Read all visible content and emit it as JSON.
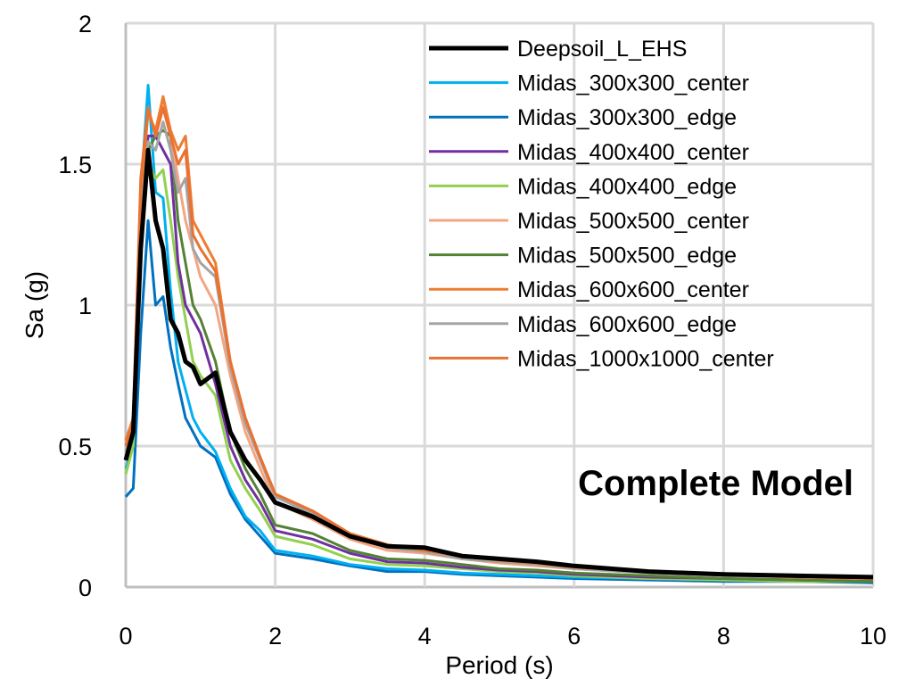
{
  "chart_data": {
    "type": "line",
    "title": "",
    "xlabel": "Period (s)",
    "ylabel": "Sa (g)",
    "xlim": [
      0,
      10
    ],
    "ylim": [
      0,
      2
    ],
    "xticks": [
      "0",
      "2",
      "4",
      "6",
      "8",
      "10"
    ],
    "yticks": [
      "0",
      "0.5",
      "1",
      "1.5",
      "2"
    ],
    "grid": true,
    "legend_position": "top-right",
    "annotation": "Complete Model",
    "x": [
      0,
      0.1,
      0.2,
      0.3,
      0.4,
      0.5,
      0.6,
      0.7,
      0.8,
      0.9,
      1.0,
      1.2,
      1.4,
      1.6,
      1.8,
      2.0,
      2.5,
      3,
      3.5,
      4,
      4.5,
      5,
      5.5,
      6,
      7,
      8,
      9,
      10
    ],
    "series": [
      {
        "name": "Deepsoil_L_EHS",
        "color": "#000000",
        "values": [
          0.45,
          0.55,
          1.2,
          1.55,
          1.3,
          1.2,
          0.95,
          0.9,
          0.8,
          0.78,
          0.72,
          0.76,
          0.55,
          0.45,
          0.38,
          0.3,
          0.25,
          0.18,
          0.145,
          0.14,
          0.11,
          0.1,
          0.09,
          0.075,
          0.055,
          0.045,
          0.04,
          0.035
        ]
      },
      {
        "name": "Midas_300x300_center",
        "color": "#00B0F0",
        "values": [
          0.42,
          0.5,
          1.4,
          1.78,
          1.4,
          1.38,
          1.05,
          0.8,
          0.7,
          0.6,
          0.55,
          0.48,
          0.35,
          0.25,
          0.2,
          0.13,
          0.11,
          0.08,
          0.065,
          0.06,
          0.05,
          0.045,
          0.04,
          0.035,
          0.03,
          0.025,
          0.02,
          0.02
        ]
      },
      {
        "name": "Midas_300x300_edge",
        "color": "#0070C0",
        "values": [
          0.32,
          0.35,
          0.9,
          1.3,
          1.0,
          1.03,
          0.85,
          0.72,
          0.6,
          0.55,
          0.5,
          0.46,
          0.33,
          0.24,
          0.18,
          0.12,
          0.1,
          0.075,
          0.055,
          0.055,
          0.045,
          0.04,
          0.035,
          0.03,
          0.025,
          0.02,
          0.02,
          0.015
        ]
      },
      {
        "name": "Midas_400x400_center",
        "color": "#7030A0",
        "values": [
          0.45,
          0.55,
          1.3,
          1.6,
          1.6,
          1.55,
          1.5,
          1.15,
          1.0,
          0.95,
          0.9,
          0.72,
          0.5,
          0.38,
          0.3,
          0.2,
          0.17,
          0.12,
          0.09,
          0.085,
          0.07,
          0.06,
          0.055,
          0.045,
          0.035,
          0.03,
          0.025,
          0.02
        ]
      },
      {
        "name": "Midas_400x400_edge",
        "color": "#92D050",
        "values": [
          0.4,
          0.5,
          1.25,
          1.5,
          1.45,
          1.48,
          1.3,
          1.1,
          0.95,
          0.8,
          0.75,
          0.68,
          0.45,
          0.35,
          0.27,
          0.18,
          0.15,
          0.1,
          0.08,
          0.075,
          0.065,
          0.055,
          0.05,
          0.04,
          0.03,
          0.025,
          0.02,
          0.02
        ]
      },
      {
        "name": "Midas_500x500_center",
        "color": "#F4A582",
        "values": [
          0.5,
          0.58,
          1.4,
          1.7,
          1.6,
          1.72,
          1.6,
          1.45,
          1.3,
          1.2,
          1.1,
          1.0,
          0.75,
          0.55,
          0.42,
          0.3,
          0.24,
          0.17,
          0.13,
          0.12,
          0.1,
          0.085,
          0.075,
          0.065,
          0.05,
          0.04,
          0.035,
          0.03
        ]
      },
      {
        "name": "Midas_500x500_edge",
        "color": "#548235",
        "values": [
          0.45,
          0.55,
          1.3,
          1.55,
          1.6,
          1.62,
          1.6,
          1.3,
          1.15,
          1.0,
          0.95,
          0.8,
          0.55,
          0.42,
          0.33,
          0.22,
          0.19,
          0.13,
          0.1,
          0.095,
          0.08,
          0.065,
          0.06,
          0.05,
          0.04,
          0.03,
          0.025,
          0.02
        ]
      },
      {
        "name": "Midas_600x600_center",
        "color": "#ED7D31",
        "values": [
          0.52,
          0.6,
          1.4,
          1.68,
          1.62,
          1.74,
          1.62,
          1.55,
          1.6,
          1.3,
          1.25,
          1.15,
          0.8,
          0.6,
          0.46,
          0.33,
          0.27,
          0.19,
          0.15,
          0.13,
          0.11,
          0.095,
          0.085,
          0.07,
          0.055,
          0.045,
          0.035,
          0.03
        ]
      },
      {
        "name": "Midas_600x600_edge",
        "color": "#A5A5A5",
        "values": [
          0.48,
          0.58,
          1.35,
          1.58,
          1.55,
          1.65,
          1.55,
          1.4,
          1.45,
          1.2,
          1.15,
          1.1,
          0.78,
          0.58,
          0.45,
          0.32,
          0.26,
          0.18,
          0.14,
          0.125,
          0.1,
          0.09,
          0.08,
          0.065,
          0.05,
          0.04,
          0.035,
          0.03
        ]
      },
      {
        "name": "Midas_1000x1000_center",
        "color": "#E97132",
        "values": [
          0.5,
          0.6,
          1.45,
          1.7,
          1.6,
          1.7,
          1.6,
          1.5,
          1.55,
          1.25,
          1.2,
          1.12,
          0.8,
          0.6,
          0.46,
          0.33,
          0.27,
          0.19,
          0.15,
          0.13,
          0.11,
          0.095,
          0.085,
          0.07,
          0.055,
          0.045,
          0.035,
          0.03
        ]
      }
    ]
  }
}
